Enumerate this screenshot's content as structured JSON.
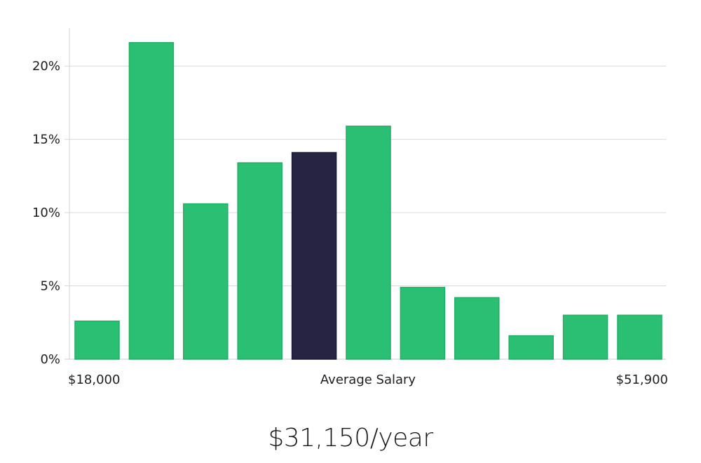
{
  "chart_data": {
    "type": "bar",
    "values": [
      2.6,
      21.6,
      10.6,
      13.4,
      14.1,
      15.9,
      4.9,
      4.2,
      1.6,
      3.0,
      3.0
    ],
    "highlight_index": 4,
    "y_ticks": [
      "0%",
      "5%",
      "10%",
      "15%",
      "20%"
    ],
    "y_tick_values": [
      0,
      5,
      10,
      15,
      20
    ],
    "ylim": [
      0,
      22.5
    ],
    "x_left_label": "$18,000",
    "x_center_label": "Average Salary",
    "x_right_label": "$51,900",
    "grid": true,
    "colors": {
      "bar": "#2bbf74",
      "bar_stroke": "#23ad66",
      "highlight": "#272343",
      "grid": "#d9d9d9",
      "axis": "#cccccc"
    }
  },
  "headline": "$31,150/year"
}
